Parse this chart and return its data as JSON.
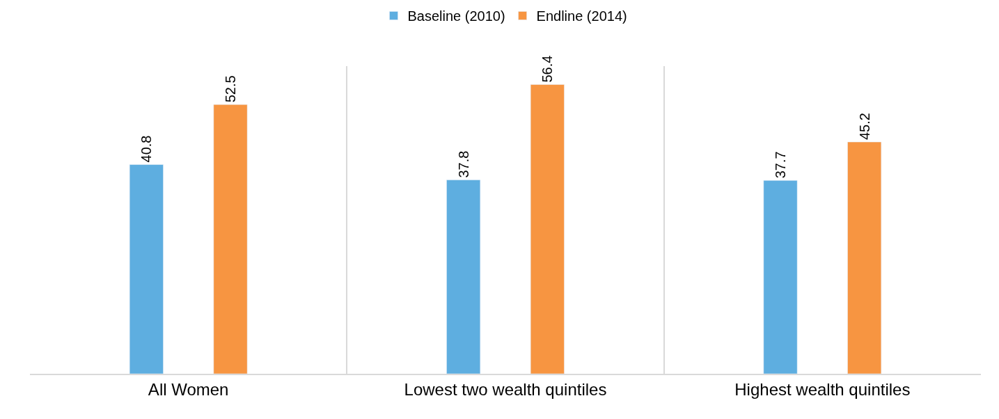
{
  "chart_data": {
    "type": "bar",
    "categories": [
      "All Women",
      "Lowest two wealth quintiles",
      "Highest wealth quintiles"
    ],
    "series": [
      {
        "name": "Baseline (2010)",
        "color": "#5eaee0",
        "values": [
          40.8,
          37.8,
          37.7
        ]
      },
      {
        "name": "Endline (2014)",
        "color": "#f79541",
        "values": [
          52.5,
          56.4,
          45.2
        ]
      }
    ],
    "ylim": [
      0,
      60
    ],
    "data_labels": true,
    "grid": "x",
    "legend": "top",
    "tick_labels": "x"
  }
}
